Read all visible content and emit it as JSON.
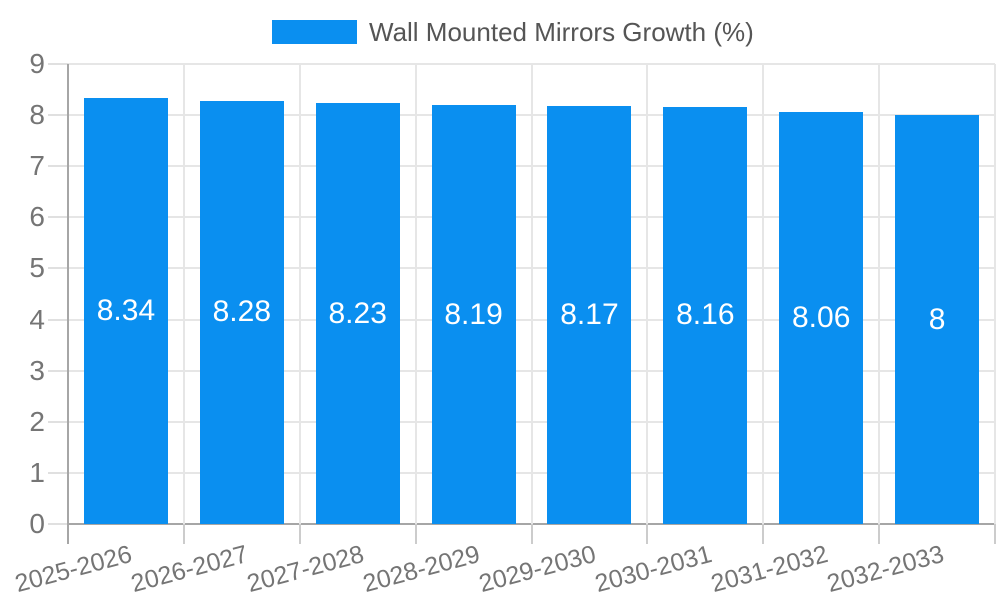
{
  "legend": {
    "label": "Wall Mounted Mirrors Growth (%)"
  },
  "chart_data": {
    "type": "bar",
    "title": "Wall Mounted Mirrors Growth (%)",
    "categories": [
      "2025-2026",
      "2026-2027",
      "2027-2028",
      "2028-2029",
      "2029-2030",
      "2030-2031",
      "2031-2032",
      "2032-2033"
    ],
    "values": [
      8.34,
      8.28,
      8.23,
      8.19,
      8.17,
      8.16,
      8.06,
      8
    ],
    "bar_labels": [
      "8.34",
      "8.28",
      "8.23",
      "8.19",
      "8.17",
      "8.16",
      "8.06",
      "8"
    ],
    "xlabel": "",
    "ylabel": "",
    "ylim": [
      0,
      9
    ],
    "yticks": [
      0,
      1,
      2,
      3,
      4,
      5,
      6,
      7,
      8,
      9
    ],
    "grid": true,
    "legend_position": "top",
    "colors": {
      "bar": "#0a8ff0",
      "bar_label": "#ffffff",
      "grid": "#e6e6e6",
      "axis": "#a6a6a6",
      "ytick": "#e0e0e0",
      "xtick": "#cccccc",
      "axis_label": "#757575",
      "legend_text": "#555555",
      "background": "#ffffff"
    }
  }
}
